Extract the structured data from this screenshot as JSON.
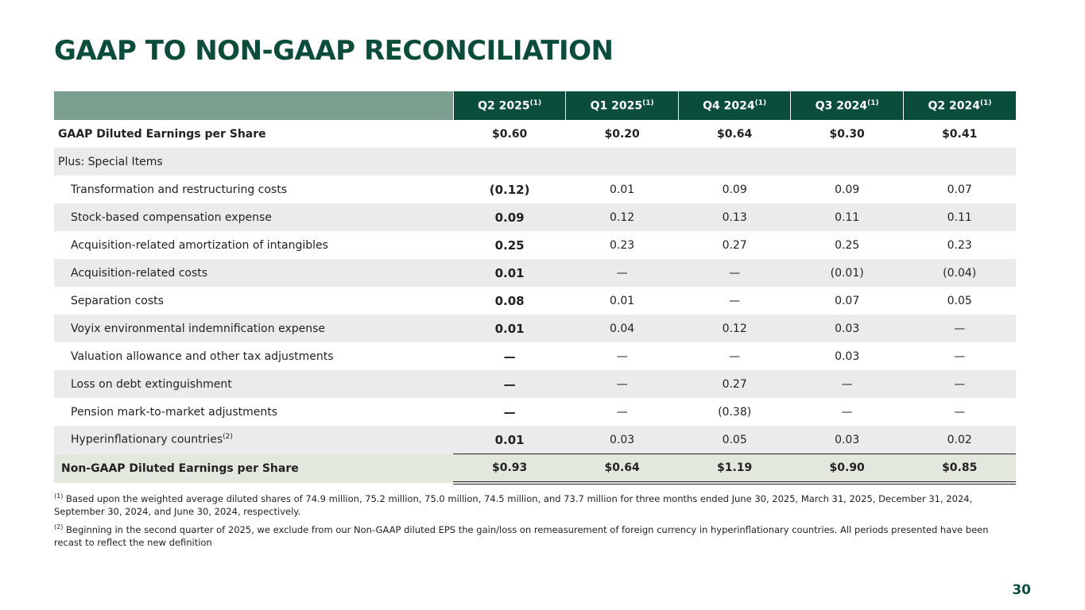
{
  "title": "GAAP TO NON-GAAP RECONCILIATION",
  "columns": [
    {
      "label": "Q2 2025",
      "note": "(1)"
    },
    {
      "label": "Q1 2025",
      "note": "(1)"
    },
    {
      "label": "Q4 2024",
      "note": "(1)"
    },
    {
      "label": "Q3 2024",
      "note": "(1)"
    },
    {
      "label": "Q2 2024",
      "note": "(1)"
    }
  ],
  "rows": [
    {
      "label": "GAAP Diluted Earnings per Share",
      "type": "bold",
      "values": [
        "$0.60",
        "$0.20",
        "$0.64",
        "$0.30",
        "$0.41"
      ]
    },
    {
      "label": "Plus: Special Items",
      "type": "section",
      "values": []
    },
    {
      "label": "Transformation and restructuring costs",
      "values": [
        "(0.12)",
        "0.01",
        "0.09",
        "0.09",
        "0.07"
      ]
    },
    {
      "label": "Stock-based compensation expense",
      "values": [
        "0.09",
        "0.12",
        "0.13",
        "0.11",
        "0.11"
      ]
    },
    {
      "label": "Acquisition-related amortization of intangibles",
      "values": [
        "0.25",
        "0.23",
        "0.27",
        "0.25",
        "0.23"
      ]
    },
    {
      "label": "Acquisition-related costs",
      "values": [
        "0.01",
        "—",
        "—",
        "(0.01)",
        "(0.04)"
      ]
    },
    {
      "label": "Separation costs",
      "values": [
        "0.08",
        "0.01",
        "—",
        "0.07",
        "0.05"
      ]
    },
    {
      "label": "Voyix environmental indemnification expense",
      "values": [
        "0.01",
        "0.04",
        "0.12",
        "0.03",
        "—"
      ]
    },
    {
      "label": "Valuation allowance and other tax adjustments",
      "values": [
        "—",
        "—",
        "—",
        "0.03",
        "—"
      ]
    },
    {
      "label": "Loss on debt extinguishment",
      "values": [
        "—",
        "—",
        "0.27",
        "—",
        "—"
      ]
    },
    {
      "label": "Pension mark-to-market adjustments",
      "values": [
        "—",
        "—",
        "(0.38)",
        "—",
        "—"
      ]
    },
    {
      "label": "Hyperinflationary countries",
      "note": "(2)",
      "values": [
        "0.01",
        "0.03",
        "0.05",
        "0.03",
        "0.02"
      ]
    }
  ],
  "total": {
    "label": "Non-GAAP Diluted Earnings per Share",
    "values": [
      "$0.93",
      "$0.64",
      "$1.19",
      "$0.90",
      "$0.85"
    ]
  },
  "footnotes": [
    {
      "mark": "(1)",
      "text": " Based upon the weighted average diluted shares of 74.9 million, 75.2 million, 75.0 million, 74.5 million, and 73.7 million for three months ended June 30, 2025, March 31, 2025, December 31, 2024, September 30, 2024, and June 30, 2024, respectively."
    },
    {
      "mark": "(2)",
      "text": " Beginning in the second quarter of 2025, we exclude from our Non-GAAP diluted EPS the gain/loss on remeasurement of foreign currency in hyperinflationary countries. All periods presented have been recast to reflect the new definition"
    }
  ],
  "page_number": "30",
  "colors": {
    "dark_green": "#0b4d3b",
    "header_light": "#7b9f8e",
    "row_grey": "#ebebeb",
    "total_bg": "#e3e8df"
  }
}
